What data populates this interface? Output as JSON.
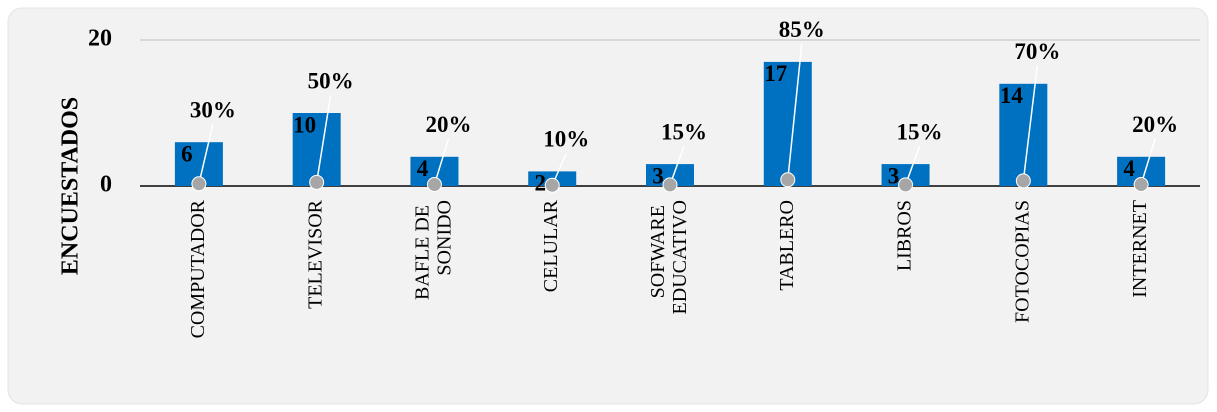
{
  "chart_data": {
    "type": "bar",
    "y_label": "ENCUESTADOS",
    "categories": [
      "COMPUTADOR",
      "TELEVISOR",
      "BAFLE DE SONIDO",
      "CELULAR",
      "SOFWARE EDUCATIVO",
      "TABLERO",
      "LIBROS",
      "FOTOCOPIAS",
      "INTERNET"
    ],
    "series": [
      {
        "color": "#0070c0",
        "values": [
          6,
          10,
          4,
          2,
          3,
          17,
          3,
          14,
          4
        ]
      },
      {
        "color": "#a6a6a6",
        "values": [
          0.3,
          0.5,
          0.2,
          0.1,
          0.15,
          0.85,
          0.15,
          0.7,
          0.2
        ],
        "value_labels": [
          "30%",
          "50%",
          "20%",
          "10%",
          "15%",
          "85%",
          "15%",
          "70%",
          "20%"
        ]
      }
    ],
    "ylim": [
      0,
      20
    ],
    "yticks": [
      0,
      20
    ],
    "grid": true
  }
}
